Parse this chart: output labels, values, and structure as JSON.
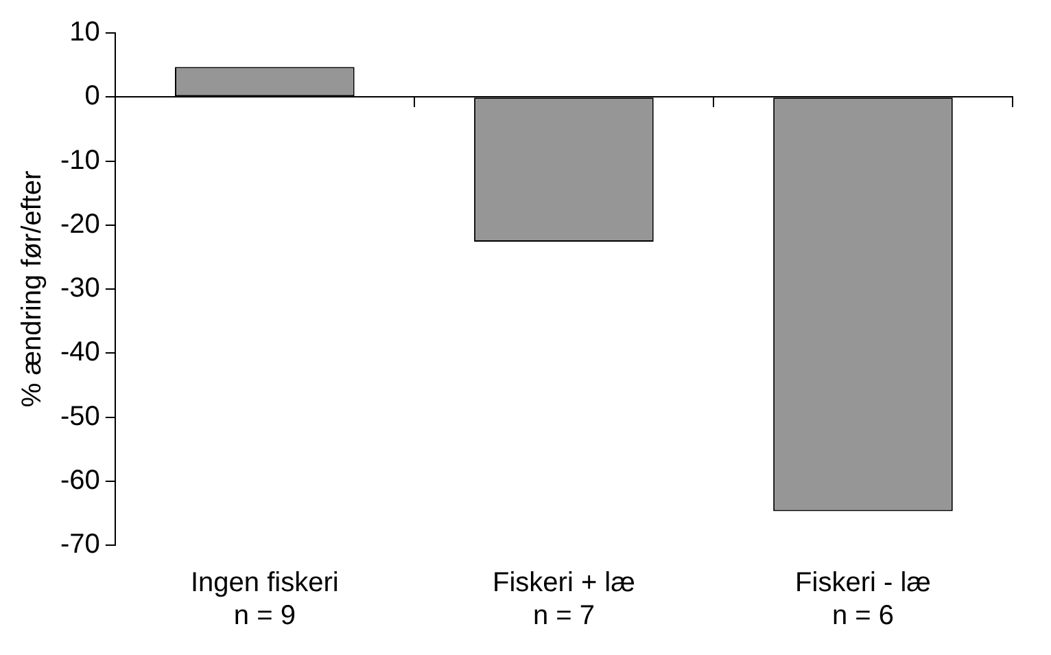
{
  "chart_data": {
    "type": "bar",
    "ylabel": "% ændring før/efter",
    "categories": [
      "Ingen fiskeri\nn = 9",
      "Fiskeri + læ\nn = 7",
      "Fiskeri - læ\nn = 6"
    ],
    "values": [
      4.7,
      -22.6,
      -64.7
    ],
    "color": "#969696",
    "ylim": [
      -70,
      10
    ],
    "yticks": [
      -70,
      -60,
      -50,
      -40,
      -30,
      -20,
      -10,
      0,
      10
    ],
    "legend": false
  }
}
